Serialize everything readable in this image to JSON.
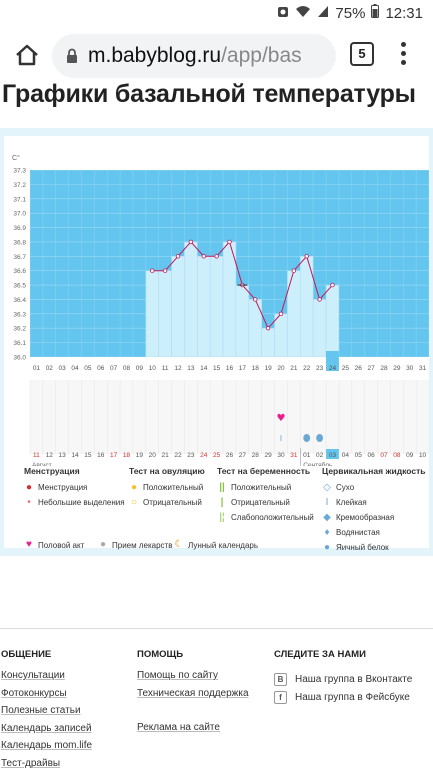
{
  "statusbar": {
    "battery": "75%",
    "time": "12:31"
  },
  "browser": {
    "url_host": "m.babyblog.ru",
    "url_path": "/app/bas",
    "tab_count": "5"
  },
  "page": {
    "title": "Графики базальной температуры"
  },
  "chart_data": {
    "type": "line",
    "ylabel": "C°",
    "ylim": [
      36.0,
      37.3
    ],
    "yticks": [
      "36.0",
      "36.1",
      "36.2",
      "36.3",
      "36.4",
      "36.5",
      "36.6",
      "36.7",
      "36.8",
      "36.9",
      "37.0",
      "37.1",
      "37.2",
      "37.3"
    ],
    "x_days": [
      "01",
      "02",
      "03",
      "04",
      "05",
      "06",
      "07",
      "08",
      "09",
      "10",
      "11",
      "12",
      "13",
      "14",
      "15",
      "16",
      "17",
      "18",
      "19",
      "20",
      "21",
      "22",
      "23",
      "24",
      "25",
      "26",
      "27",
      "28",
      "29",
      "30",
      "31"
    ],
    "x_cycle": [
      "11",
      "12",
      "13",
      "14",
      "15",
      "16",
      "17",
      "18",
      "19",
      "20",
      "21",
      "22",
      "23",
      "24",
      "25",
      "26",
      "27",
      "28",
      "29",
      "30",
      "31",
      "01",
      "02",
      "03",
      "04",
      "05",
      "06",
      "07",
      "08",
      "09",
      "10"
    ],
    "month_left": "Август",
    "month_right": "Сентябрь",
    "highlight_day": "24",
    "highlight_cycle": "03",
    "series": [
      {
        "start_index": 9,
        "values": [
          36.6,
          36.6,
          36.7,
          36.8,
          36.7,
          36.7,
          36.8,
          36.5,
          36.4,
          36.2,
          36.3,
          36.6,
          36.7,
          36.4,
          36.5
        ]
      }
    ],
    "marked_point_index": 16,
    "events": {
      "heart_index": 19,
      "clock_index": 19,
      "drops_indices": [
        21,
        22
      ]
    },
    "colors": {
      "bg": "#64c6ee",
      "bar": "#cdeefb",
      "line": "#c2185b",
      "heart": "#e91e8c",
      "drop": "#6aa9d6"
    }
  },
  "legend": {
    "menstruation": {
      "title": "Менструация",
      "items": [
        "Менструация",
        "Небольшие выделения"
      ]
    },
    "ovulation": {
      "title": "Тест на овуляцию",
      "items": [
        "Положительный",
        "Отрицательный"
      ]
    },
    "pregnancy": {
      "title": "Тест на беременность",
      "items": [
        "Положительный",
        "Отрицательный",
        "Слабоположительный"
      ]
    },
    "cervical": {
      "title": "Цервикальная жидкость",
      "items": [
        "Сухо",
        "Клейкая",
        "Кремообразная",
        "Водянистая",
        "Яичный белок"
      ]
    },
    "bottom": [
      "Половой акт",
      "Прием лекарств",
      "Лунный календарь"
    ]
  },
  "footer": {
    "col1": {
      "title": "ОБЩЕНИЕ",
      "links": [
        "Консультации",
        "Фотоконкурсы",
        "Полезные статьи",
        "Календарь записей",
        "Календарь mom.life",
        "Тест-драйвы"
      ]
    },
    "col2": {
      "title": "ПОМОЩЬ",
      "links": [
        "Помощь по сайту",
        "Техническая поддержка",
        "Реклама на сайте"
      ]
    },
    "col3": {
      "title": "СЛЕДИТЕ ЗА НАМИ",
      "links": [
        "Наша группа в Вконтакте",
        "Наша группа в Фейсбуке"
      ],
      "icons": [
        "В",
        "f"
      ]
    }
  }
}
